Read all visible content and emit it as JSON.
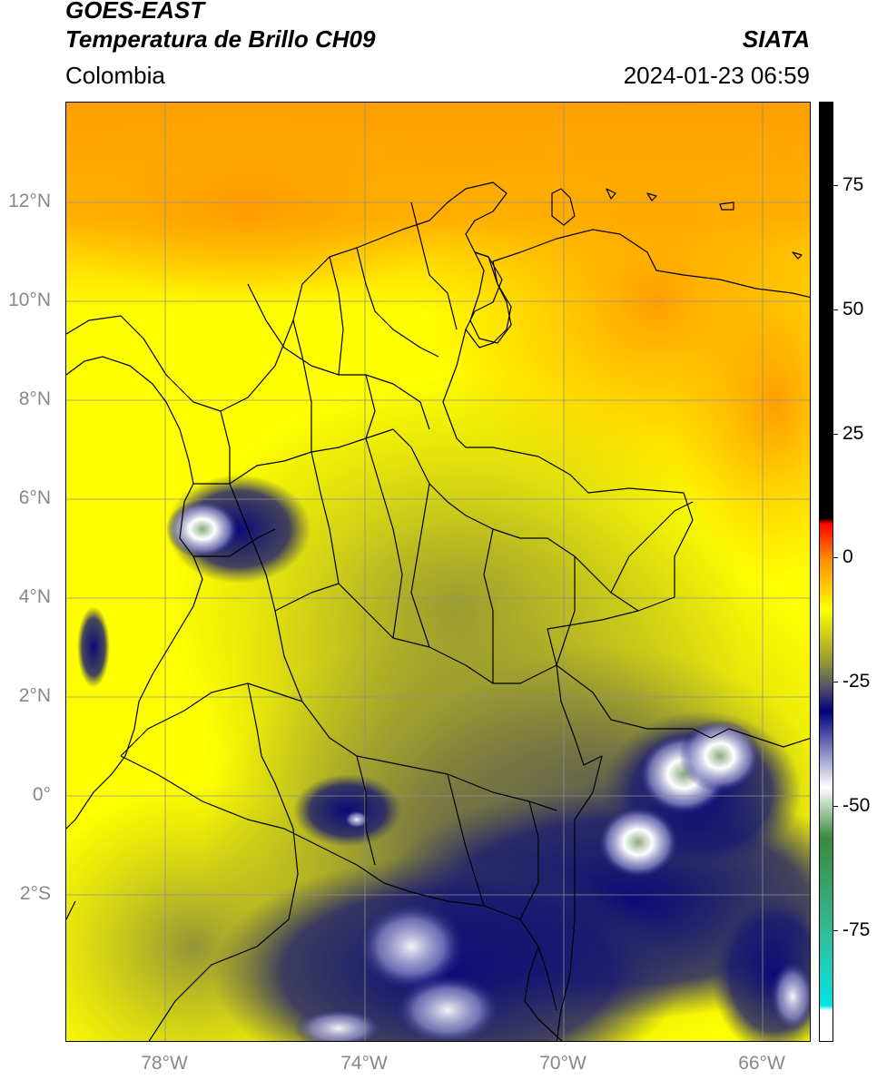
{
  "header": {
    "title_line1": "GOES-EAST",
    "title_line2": "Temperatura de Brillo CH09",
    "agency": "SIATA",
    "region": "Colombia",
    "datetime": "2024-01-23 06:59"
  },
  "map": {
    "lat_labels": [
      "12°N",
      "10°N",
      "8°N",
      "6°N",
      "4°N",
      "2°N",
      "0°",
      "2°S"
    ],
    "lon_labels": [
      "78°W",
      "74°W",
      "70°W",
      "66°W"
    ],
    "colors": {
      "ocean_yellow": "#ffff00",
      "warm_orange": "#ffa500",
      "olive_land": "#9a9a2a",
      "cold_navy": "#10106e",
      "cold_white": "#ffffff",
      "cold_green": "#6a9a6a",
      "borders": "#000000",
      "grid": "#9a9a9a"
    }
  },
  "colorbar": {
    "labels": [
      "75",
      "50",
      "25",
      "0",
      "-25",
      "-50",
      "-75"
    ],
    "stops": [
      {
        "value": 90,
        "color": "#000000"
      },
      {
        "value": 8,
        "color": "#000000"
      },
      {
        "value": 7,
        "color": "#ff0000"
      },
      {
        "value": 0,
        "color": "#ff8c00"
      },
      {
        "value": -10,
        "color": "#ffff00"
      },
      {
        "value": -20,
        "color": "#9a9a30"
      },
      {
        "value": -25,
        "color": "#555566"
      },
      {
        "value": -30,
        "color": "#000080"
      },
      {
        "value": -45,
        "color": "#ffffff"
      },
      {
        "value": -55,
        "color": "#3a8a3a"
      },
      {
        "value": -75,
        "color": "#30c0a0"
      },
      {
        "value": -88,
        "color": "#00e5e5"
      },
      {
        "value": -89,
        "color": "#ffffff"
      },
      {
        "value": -95,
        "color": "#ffffff"
      }
    ]
  }
}
